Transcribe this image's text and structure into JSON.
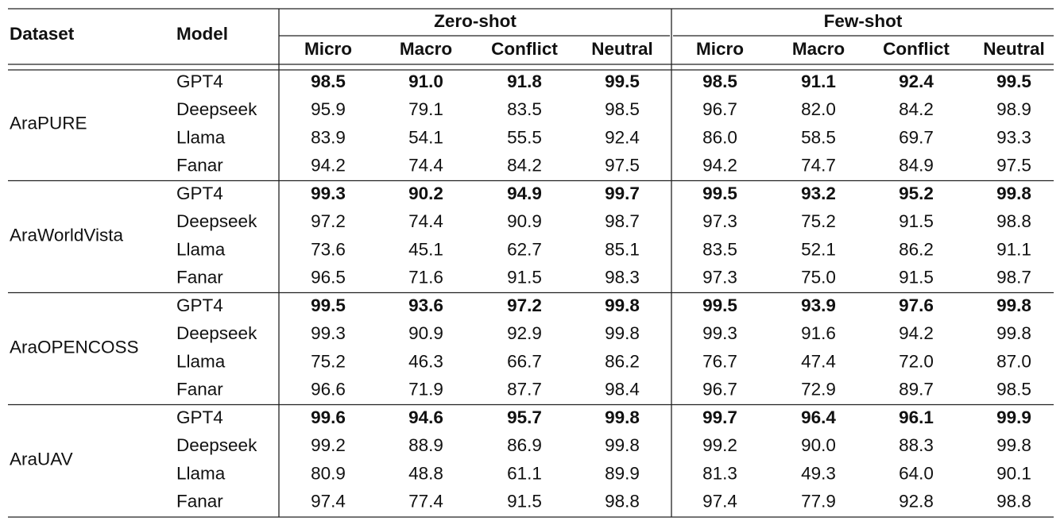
{
  "table": {
    "headers": {
      "dataset": "Dataset",
      "model": "Model"
    },
    "groups": [
      {
        "name": "Zero-shot",
        "columns": [
          "Micro",
          "Macro",
          "Conflict",
          "Neutral"
        ]
      },
      {
        "name": "Few-shot",
        "columns": [
          "Micro",
          "Macro",
          "Conflict",
          "Neutral"
        ]
      }
    ],
    "datasets": [
      {
        "name": "AraPURE",
        "rows": [
          {
            "model": "GPT4",
            "bold": true,
            "cells": [
              "98.5",
              "91.0",
              "91.8",
              "99.5",
              "98.5",
              "91.1",
              "92.4",
              "99.5"
            ]
          },
          {
            "model": "Deepseek",
            "bold": false,
            "cells": [
              "95.9",
              "79.1",
              "83.5",
              "98.5",
              "96.7",
              "82.0",
              "84.2",
              "98.9"
            ]
          },
          {
            "model": "Llama",
            "bold": false,
            "cells": [
              "83.9",
              "54.1",
              "55.5",
              "92.4",
              "86.0",
              "58.5",
              "69.7",
              "93.3"
            ]
          },
          {
            "model": "Fanar",
            "bold": false,
            "cells": [
              "94.2",
              "74.4",
              "84.2",
              "97.5",
              "94.2",
              "74.7",
              "84.9",
              "97.5"
            ]
          }
        ]
      },
      {
        "name": "AraWorldVista",
        "rows": [
          {
            "model": "GPT4",
            "bold": true,
            "cells": [
              "99.3",
              "90.2",
              "94.9",
              "99.7",
              "99.5",
              "93.2",
              "95.2",
              "99.8"
            ]
          },
          {
            "model": "Deepseek",
            "bold": false,
            "cells": [
              "97.2",
              "74.4",
              "90.9",
              "98.7",
              "97.3",
              "75.2",
              "91.5",
              "98.8"
            ]
          },
          {
            "model": "Llama",
            "bold": false,
            "cells": [
              "73.6",
              "45.1",
              "62.7",
              "85.1",
              "83.5",
              "52.1",
              "86.2",
              "91.1"
            ]
          },
          {
            "model": "Fanar",
            "bold": false,
            "cells": [
              "96.5",
              "71.6",
              "91.5",
              "98.3",
              "97.3",
              "75.0",
              "91.5",
              "98.7"
            ]
          }
        ]
      },
      {
        "name": "AraOPENCOSS",
        "rows": [
          {
            "model": "GPT4",
            "bold": true,
            "cells": [
              "99.5",
              "93.6",
              "97.2",
              "99.8",
              "99.5",
              "93.9",
              "97.6",
              "99.8"
            ]
          },
          {
            "model": "Deepseek",
            "bold": false,
            "cells": [
              "99.3",
              "90.9",
              "92.9",
              "99.8",
              "99.3",
              "91.6",
              "94.2",
              "99.8"
            ]
          },
          {
            "model": "Llama",
            "bold": false,
            "cells": [
              "75.2",
              "46.3",
              "66.7",
              "86.2",
              "76.7",
              "47.4",
              "72.0",
              "87.0"
            ]
          },
          {
            "model": "Fanar",
            "bold": false,
            "cells": [
              "96.6",
              "71.9",
              "87.7",
              "98.4",
              "96.7",
              "72.9",
              "89.7",
              "98.5"
            ]
          }
        ]
      },
      {
        "name": "AraUAV",
        "rows": [
          {
            "model": "GPT4",
            "bold": true,
            "cells": [
              "99.6",
              "94.6",
              "95.7",
              "99.8",
              "99.7",
              "96.4",
              "96.1",
              "99.9"
            ]
          },
          {
            "model": "Deepseek",
            "bold": false,
            "cells": [
              "99.2",
              "88.9",
              "86.9",
              "99.8",
              "99.2",
              "90.0",
              "88.3",
              "99.8"
            ]
          },
          {
            "model": "Llama",
            "bold": false,
            "cells": [
              "80.9",
              "48.8",
              "61.1",
              "89.9",
              "81.3",
              "49.3",
              "64.0",
              "90.1"
            ]
          },
          {
            "model": "Fanar",
            "bold": false,
            "cells": [
              "97.4",
              "77.4",
              "91.5",
              "98.8",
              "97.4",
              "77.9",
              "92.8",
              "98.8"
            ]
          }
        ]
      }
    ]
  }
}
